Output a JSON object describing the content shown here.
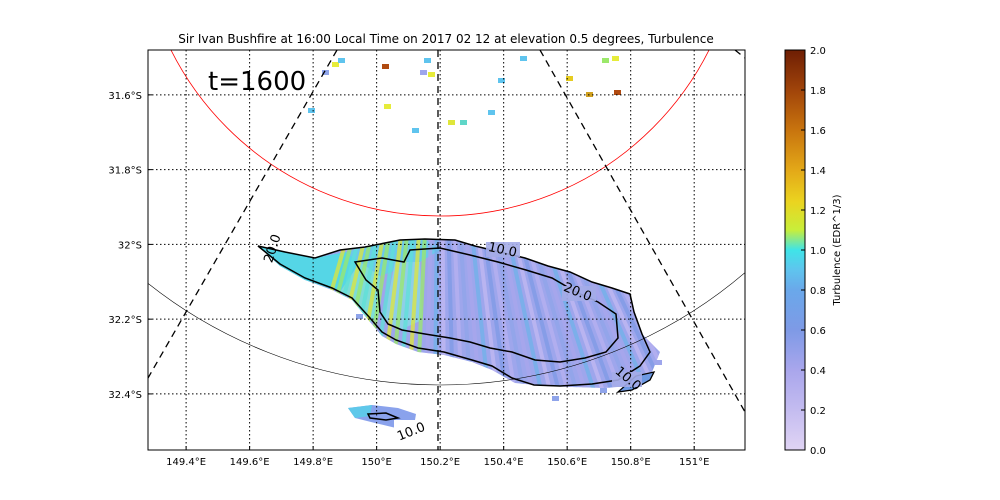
{
  "chart_data": {
    "type": "map",
    "title": "Sir Ivan Bushfire at 16:00 Local Time on 2017 02 12 at elevation 0.5 degrees, Turbulence",
    "annotation": "t=1600",
    "x_ticks": [
      "149.4°E",
      "149.6°E",
      "149.8°E",
      "150°E",
      "150.2°E",
      "150.4°E",
      "150.6°E",
      "150.8°E",
      "151°E"
    ],
    "x_tick_values": [
      149.4,
      149.6,
      149.8,
      150.0,
      150.2,
      150.4,
      150.6,
      150.8,
      151.0
    ],
    "y_ticks": [
      "31.6°S",
      "31.8°S",
      "32°S",
      "32.2°S",
      "32.4°S"
    ],
    "y_tick_values": [
      -31.6,
      -31.8,
      -32.0,
      -32.2,
      -32.4
    ],
    "xlim": [
      149.28,
      151.16
    ],
    "ylim": [
      -32.55,
      -31.48
    ],
    "grid": true,
    "colorbar": {
      "label": "Turbulence (EDR^1/3)",
      "ticks": [
        "0.0",
        "0.2",
        "0.4",
        "0.6",
        "0.8",
        "1.0",
        "1.2",
        "1.4",
        "1.6",
        "1.8",
        "2.0"
      ],
      "range": [
        0,
        2
      ],
      "colors": [
        "#e0d4f4",
        "#a9a6ec",
        "#7e9ae6",
        "#5fb4ec",
        "#3fe0e8",
        "#e6ec3a",
        "#ebc020",
        "#d08a12",
        "#a8520c",
        "#6e1e04"
      ]
    },
    "contour_labels": [
      "10.0",
      "20.0",
      "20.0",
      "10.0",
      "10.0"
    ],
    "fire_color_range": [
      0.4,
      1.2
    ]
  }
}
